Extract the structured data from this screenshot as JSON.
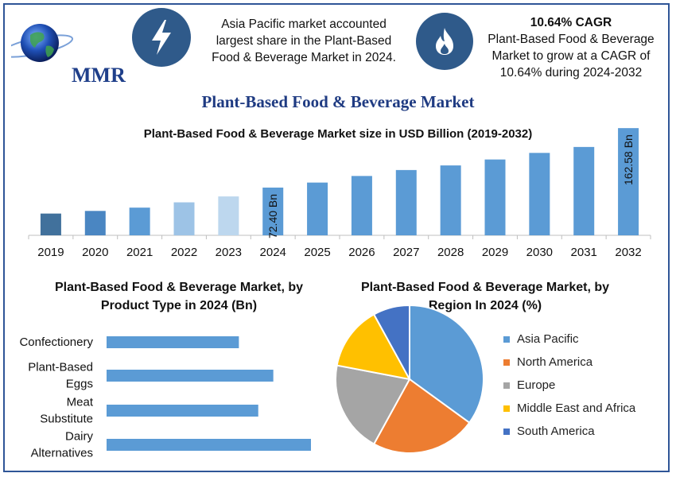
{
  "brand": {
    "logo_text": "MMR"
  },
  "highlights": {
    "region": {
      "icon": "lightning-bolt-icon",
      "lines": [
        "Asia Pacific market accounted",
        "largest share in the Plant-Based",
        "Food & Beverage Market in 2024."
      ]
    },
    "cagr": {
      "icon": "flame-icon",
      "title": "10.64% CAGR",
      "lines": [
        "Plant-Based Food & Beverage",
        "Market to grow at a CAGR of",
        "10.64% during 2024-2032"
      ]
    }
  },
  "main_title": "Plant-Based Food & Beverage Market",
  "colors": {
    "bar_blue": "#5b9bd5",
    "bar_dark": "#41719c",
    "bar_light": "#9dc3e6",
    "bar_lighter": "#bdd7ee",
    "accent": "#2f5597"
  },
  "chart_data": [
    {
      "type": "bar",
      "title": "Plant-Based Food & Beverage Market size in USD Billion (2019-2032)",
      "categories": [
        "2019",
        "2020",
        "2021",
        "2022",
        "2023",
        "2024",
        "2025",
        "2026",
        "2027",
        "2028",
        "2029",
        "2030",
        "2031",
        "2032"
      ],
      "values": [
        33,
        37,
        42,
        50,
        59,
        72.4,
        80,
        90,
        99,
        106,
        115,
        125,
        134,
        162.58
      ],
      "bar_colors": [
        "#41719c",
        "#4a86c2",
        "#5b9bd5",
        "#9dc3e6",
        "#bdd7ee",
        "#5b9bd5",
        "#5b9bd5",
        "#5b9bd5",
        "#5b9bd5",
        "#5b9bd5",
        "#5b9bd5",
        "#5b9bd5",
        "#5b9bd5",
        "#5b9bd5"
      ],
      "data_labels": {
        "2024": "72.40 Bn",
        "2032": "162.58 Bn"
      },
      "ylim": [
        0,
        170
      ]
    },
    {
      "type": "bar",
      "orientation": "horizontal",
      "title": "Plant-Based Food & Beverage Market, by Product Type in 2024 (Bn)",
      "title_lines": [
        "Plant-Based Food & Beverage Market, by",
        "Product Type in 2024 (Bn)"
      ],
      "categories": [
        [
          "Confectionery"
        ],
        [
          "Plant-Based",
          "Eggs"
        ],
        [
          "Meat",
          "Substitute"
        ],
        [
          "Dairy",
          "Alternatives"
        ]
      ],
      "values": [
        12.3,
        15.5,
        14.1,
        19.0
      ],
      "color": "#5b9bd5"
    },
    {
      "type": "pie",
      "title": "Plant-Based Food & Beverage Market, by Region In 2024 (%)",
      "title_lines": [
        "Plant-Based Food & Beverage Market, by",
        "Region In 2024 (%)"
      ],
      "labels": [
        "Asia Pacific",
        "North America",
        "Europe",
        "Middle East and Africa",
        "South America"
      ],
      "values": [
        35,
        23,
        20,
        14,
        8
      ],
      "colors": [
        "#5b9bd5",
        "#ed7d31",
        "#a5a5a5",
        "#ffc000",
        "#4472c4"
      ],
      "legend": "right"
    }
  ]
}
